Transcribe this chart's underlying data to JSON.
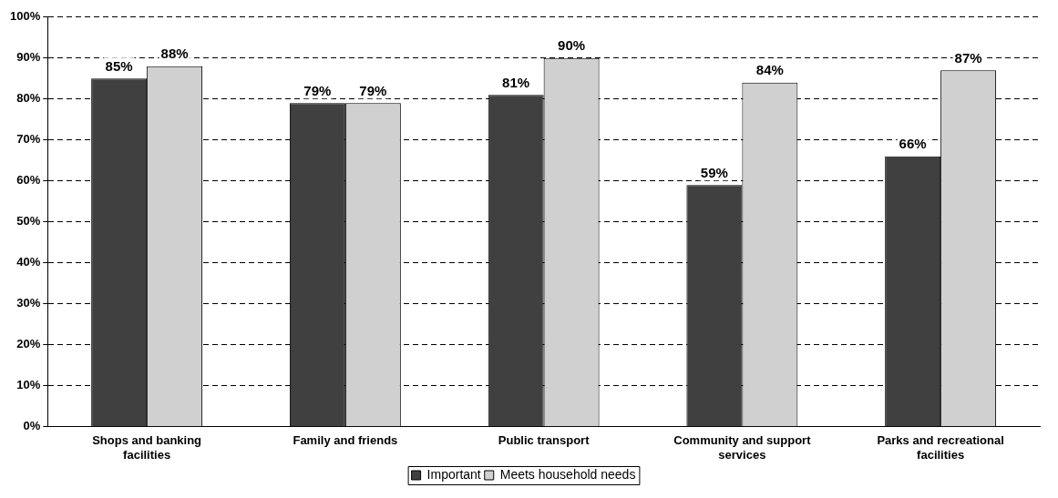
{
  "chart_data": {
    "type": "bar",
    "categories": [
      "Shops and banking facilities",
      "Family and friends",
      "Public transport",
      "Community and support services",
      "Parks and recreational facilities"
    ],
    "series": [
      {
        "name": "Important",
        "color": "#404040",
        "values": [
          85,
          79,
          81,
          59,
          66
        ],
        "value_labels": [
          "85%",
          "79%",
          "81%",
          "59%",
          "66%"
        ]
      },
      {
        "name": "Meets household needs",
        "color": "#d0d0d0",
        "values": [
          88,
          79,
          90,
          84,
          87
        ],
        "value_labels": [
          "88%",
          "79%",
          "90%",
          "84%",
          "87%"
        ]
      }
    ],
    "ylim": [
      0,
      100
    ],
    "yticks": [
      {
        "value": 0,
        "label": "0%"
      },
      {
        "value": 10,
        "label": "10%"
      },
      {
        "value": 20,
        "label": "20%"
      },
      {
        "value": 30,
        "label": "30%"
      },
      {
        "value": 40,
        "label": "40%"
      },
      {
        "value": 50,
        "label": "50%"
      },
      {
        "value": 60,
        "label": "60%"
      },
      {
        "value": 70,
        "label": "70%"
      },
      {
        "value": 80,
        "label": "80%"
      },
      {
        "value": 90,
        "label": "90%"
      },
      {
        "value": 100,
        "label": "100%"
      }
    ],
    "grid": "y",
    "legend": "bottom"
  }
}
